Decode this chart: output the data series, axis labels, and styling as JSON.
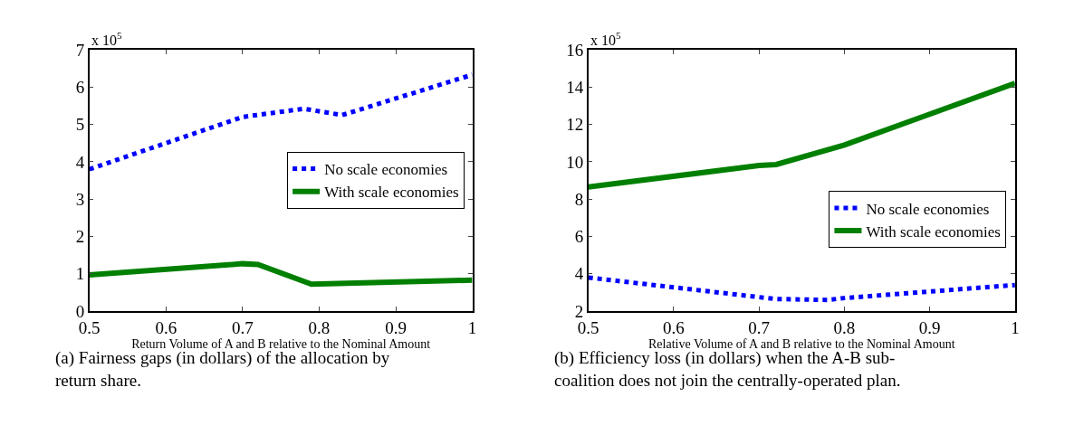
{
  "chart_data": [
    {
      "type": "line",
      "xlabel": "Return Volume of A and B relative to the Nominal Amount",
      "xlim": [
        0.5,
        1
      ],
      "xticks": [
        0.5,
        0.6,
        0.7,
        0.8,
        0.9,
        1
      ],
      "ylim": [
        0,
        7
      ],
      "yticks": [
        0,
        1,
        2,
        3,
        4,
        5,
        6,
        7
      ],
      "grid": false,
      "legend": "right",
      "marker": "none",
      "series": [
        {
          "name": "No scale economies",
          "color": "#0000ff",
          "line_style": "dotted",
          "x": [
            0.5,
            0.7,
            0.78,
            0.83,
            1.0
          ],
          "values": [
            3.8,
            5.2,
            5.42,
            5.25,
            6.33
          ]
        },
        {
          "name": "With scale economies",
          "color": "#007f00",
          "line_style": "solid",
          "x": [
            0.5,
            0.7,
            0.72,
            0.79,
            1.0
          ],
          "values": [
            0.97,
            1.27,
            1.25,
            0.72,
            0.83
          ]
        }
      ],
      "annotations": [
        "x 10$^{5}$",
        "(a) Fairness gaps (in dollars) of the allocation by return share."
      ]
    },
    {
      "type": "line",
      "xlabel": "Relative Volume of A and B relative to the Nominal Amount",
      "xlim": [
        0.5,
        1
      ],
      "xticks": [
        0.5,
        0.6,
        0.7,
        0.8,
        0.9,
        1
      ],
      "ylim": [
        2,
        16
      ],
      "yticks": [
        2,
        4,
        6,
        8,
        10,
        12,
        14,
        16
      ],
      "grid": false,
      "legend": "right",
      "marker": "none",
      "series": [
        {
          "name": "No scale economies",
          "color": "#0000ff",
          "line_style": "dotted",
          "x": [
            0.5,
            0.7,
            0.72,
            0.78,
            0.8,
            1.0
          ],
          "values": [
            3.8,
            2.75,
            2.65,
            2.6,
            2.7,
            3.4
          ]
        },
        {
          "name": "With scale economies",
          "color": "#007f00",
          "line_style": "solid",
          "x": [
            0.5,
            0.7,
            0.72,
            0.8,
            1.0
          ],
          "values": [
            8.65,
            9.8,
            9.85,
            10.9,
            14.2
          ]
        }
      ],
      "annotations": [
        "x 10$^{5}$",
        "(b) Efficiency loss (in dollars) when the A-B sub-coalition does not join the centrally-operated plan."
      ]
    }
  ]
}
